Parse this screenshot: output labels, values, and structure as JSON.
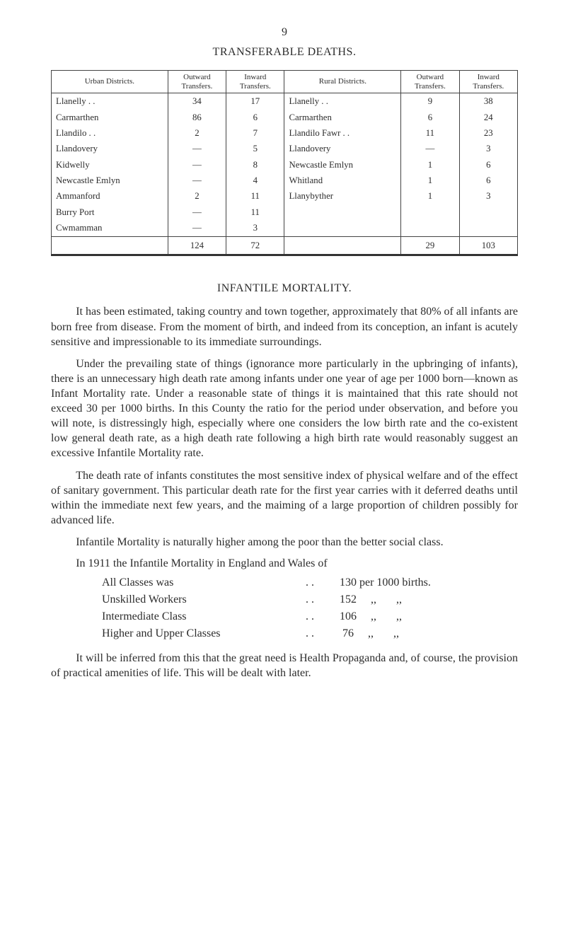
{
  "page_number": "9",
  "transfer_table": {
    "title": "TRANSFERABLE DEATHS.",
    "headers": {
      "urban": "Urban Districts.",
      "outward_u": "Outward\nTransfers.",
      "inward_u": "Inward\nTransfers.",
      "rural": "Rural Districts.",
      "outward_r": "Outward\nTransfers.",
      "inward_r": "Inward\nTransfers."
    },
    "urban_rows": [
      {
        "name": "Llanelly  . .",
        "out": "34",
        "in": "17"
      },
      {
        "name": "Carmarthen",
        "out": "86",
        "in": "6"
      },
      {
        "name": "Llandilo  . .",
        "out": "2",
        "in": "7"
      },
      {
        "name": "Llandovery",
        "out": "—",
        "in": "5"
      },
      {
        "name": "Kidwelly",
        "out": "—",
        "in": "8"
      },
      {
        "name": "Newcastle Emlyn",
        "out": "—",
        "in": "4"
      },
      {
        "name": "Ammanford",
        "out": "2",
        "in": "11"
      },
      {
        "name": "Burry Port",
        "out": "—",
        "in": "11"
      },
      {
        "name": "Cwmamman",
        "out": "—",
        "in": "3"
      }
    ],
    "rural_rows": [
      {
        "name": "Llanelly  . .",
        "out": "9",
        "in": "38"
      },
      {
        "name": "Carmarthen",
        "out": "6",
        "in": "24"
      },
      {
        "name": "Llandilo Fawr  . .",
        "out": "11",
        "in": "23"
      },
      {
        "name": "Llandovery",
        "out": "—",
        "in": "3"
      },
      {
        "name": "Newcastle Emlyn",
        "out": "1",
        "in": "6"
      },
      {
        "name": "Whitland",
        "out": "1",
        "in": "6"
      },
      {
        "name": "Llanybyther",
        "out": "1",
        "in": "3"
      }
    ],
    "totals": {
      "urban_out": "124",
      "urban_in": "72",
      "rural_out": "29",
      "rural_in": "103"
    }
  },
  "section": {
    "title": "INFANTILE MORTALITY.",
    "paragraphs": [
      "It has been estimated, taking country and town together, approximately that 80% of all infants are born free from disease. From the moment of birth, and indeed from its conception, an infant is acutely sensitive and impressionable to its immediate surroundings.",
      "Under the prevailing state of things (ignorance more particularly in the upbringing of infants), there is an unnecessary high death rate among infants under one year of age per 1000 born—known as Infant Mortality rate. Under a reasonable state of things it is maintained that this rate should not exceed 30 per 1000 births. In this County the ratio for the period under observation, and before you will note, is distressingly high, especially where one considers the low birth rate and the co-existent low general death rate, as a high death rate following a high birth rate would reasonably suggest an excessive Infantile Mortality rate.",
      "The death rate of infants constitutes the most sensitive index of physical welfare and of the effect of sanitary government. This particular death rate for the first year carries with it deferred deaths until within the immediate next few years, and the maiming of a large proportion of children possibly for advanced life.",
      "Infantile Mortality is naturally higher among the poor than the better social class."
    ],
    "stats_intro": "In 1911 the Infantile Mortality in England and Wales of",
    "stats": [
      {
        "label": "All Classes was",
        "value": "130 per 1000 births."
      },
      {
        "label": "Unskilled Workers",
        "value": "152     ,,       ,,"
      },
      {
        "label": "Intermediate Class",
        "value": "106     ,,       ,,"
      },
      {
        "label": "Higher and Upper Classes",
        "value": " 76     ,,       ,,"
      }
    ],
    "closing": "It will be inferred from this that the great need is Health Propaganda and, of course, the provision of practical amenities of life. This will be dealt with later."
  }
}
